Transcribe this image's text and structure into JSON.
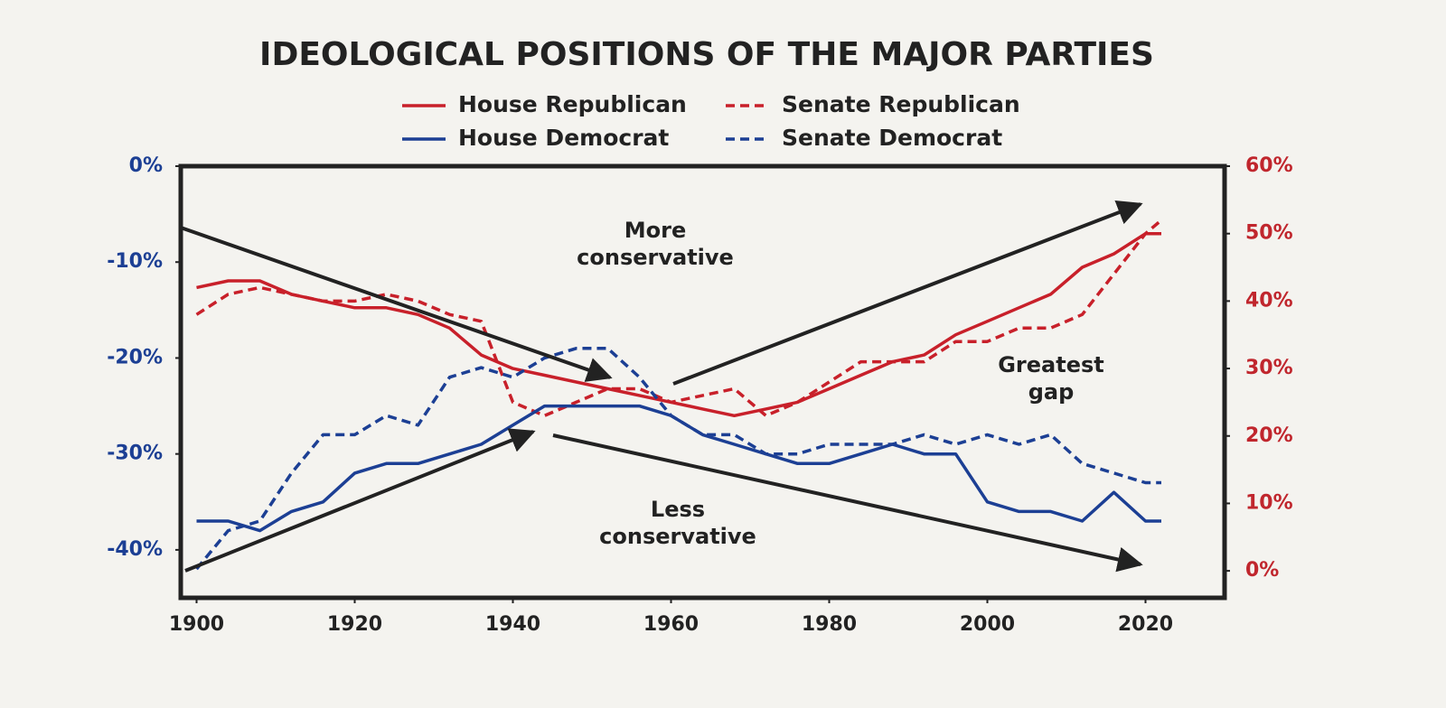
{
  "chart_data": {
    "type": "line",
    "title": "IDEOLOGICAL POSITIONS OF THE MAJOR PARTIES",
    "x": [
      1900,
      1904,
      1908,
      1912,
      1916,
      1920,
      1924,
      1928,
      1932,
      1936,
      1940,
      1944,
      1948,
      1952,
      1956,
      1960,
      1964,
      1968,
      1972,
      1976,
      1980,
      1984,
      1988,
      1992,
      1996,
      2000,
      2004,
      2008,
      2012,
      2016,
      2020,
      2022
    ],
    "xlim": [
      1898,
      2030
    ],
    "xticks": [
      1900,
      1920,
      1940,
      1960,
      1980,
      2000,
      2020
    ],
    "ylim": [
      -45,
      0
    ],
    "yticks": [
      {
        "value": 0,
        "label": "0%"
      },
      {
        "value": -10,
        "label": "-10%"
      },
      {
        "value": -20,
        "label": "-20%"
      },
      {
        "value": -30,
        "label": "-30%"
      },
      {
        "value": -40,
        "label": "-40%"
      }
    ],
    "y2lim": [
      -4,
      60
    ],
    "y2ticks": [
      {
        "value": 60,
        "label": "60%"
      },
      {
        "value": 50,
        "label": "50%"
      },
      {
        "value": 40,
        "label": "40%"
      },
      {
        "value": 30,
        "label": "30%"
      },
      {
        "value": 20,
        "label": "20%"
      },
      {
        "value": 10,
        "label": "10%"
      },
      {
        "value": 0,
        "label": "0%"
      }
    ],
    "y_color": "#1c3f94",
    "y2_color": "#c0262d",
    "series": [
      {
        "name": "House Republican",
        "color": "#c8202a",
        "dashed": false,
        "axis": "y2",
        "values": [
          42,
          43,
          43,
          41,
          40,
          39,
          39,
          38,
          36,
          32,
          30,
          29,
          28,
          27,
          26,
          25,
          24,
          23,
          24,
          25,
          27,
          29,
          31,
          32,
          35,
          37,
          39,
          41,
          45,
          47,
          50,
          50
        ]
      },
      {
        "name": "Senate Republican",
        "color": "#c8202a",
        "dashed": true,
        "axis": "y2",
        "values": [
          38,
          41,
          42,
          41,
          40,
          40,
          41,
          40,
          38,
          37,
          25,
          23,
          25,
          27,
          27,
          25,
          26,
          27,
          23,
          25,
          28,
          31,
          31,
          31,
          34,
          34,
          36,
          36,
          38,
          44,
          50,
          52
        ]
      },
      {
        "name": "House Democrat",
        "color": "#1c3f94",
        "dashed": false,
        "values": [
          -37,
          -37,
          -38,
          -36,
          -35,
          -32,
          -31,
          -31,
          -30,
          -29,
          -27,
          -25,
          -25,
          -25,
          -25,
          -26,
          -28,
          -29,
          -30,
          -31,
          -31,
          -30,
          -29,
          -30,
          -30,
          -35,
          -36,
          -36,
          -37,
          -34,
          -37,
          -37
        ]
      },
      {
        "name": "Senate Democrat",
        "color": "#1c3f94",
        "dashed": true,
        "values": [
          -42,
          -38,
          -37,
          -32,
          -28,
          -28,
          -26,
          -27,
          -22,
          -21,
          -22,
          -20,
          -19,
          -19,
          -22,
          -26,
          -28,
          -28,
          -30,
          -30,
          -29,
          -29,
          -29,
          -28,
          -29,
          -28,
          -29,
          -28,
          -31,
          -32,
          -33,
          -33
        ]
      }
    ],
    "annotations": [
      {
        "text": [
          "More",
          "conservative"
        ]
      },
      {
        "text": [
          "Less",
          "conservative"
        ]
      },
      {
        "text": [
          "Greatest",
          "gap"
        ]
      }
    ]
  }
}
